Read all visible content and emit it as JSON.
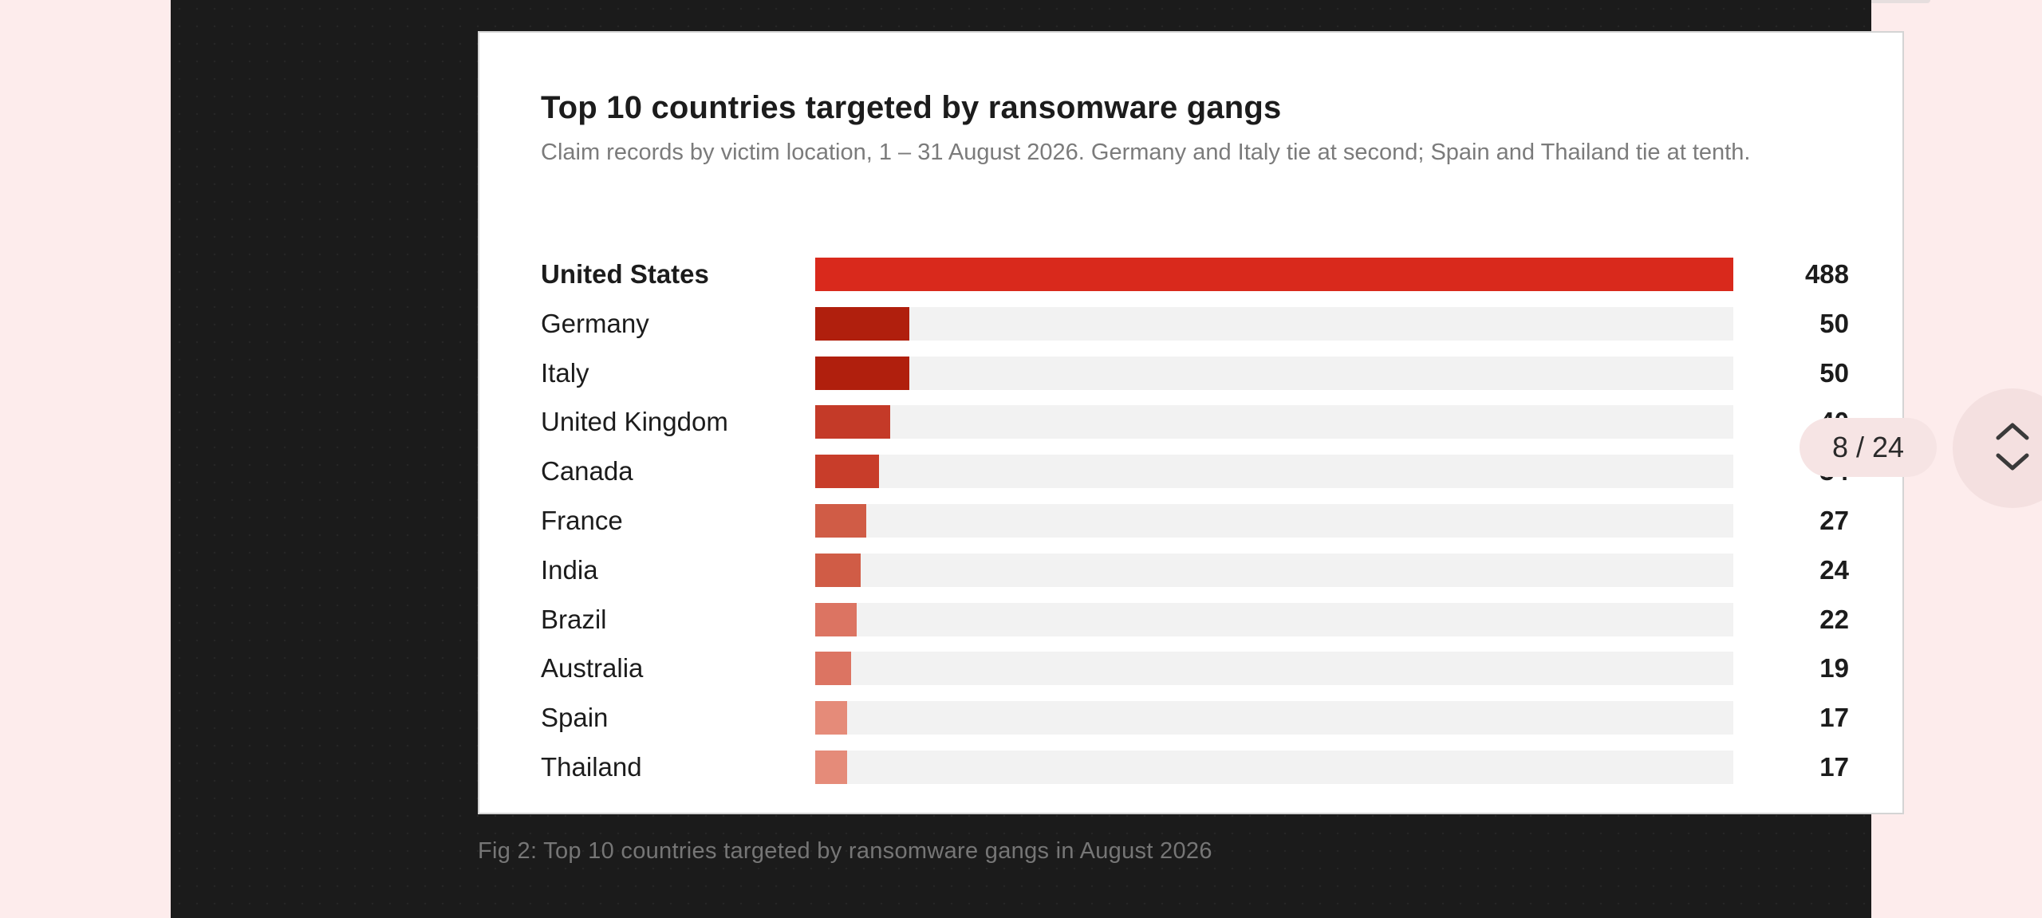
{
  "chart_data": {
    "type": "bar",
    "orientation": "horizontal",
    "title": "Top 10 countries targeted by ransomware gangs",
    "subtitle": "Claim records by victim location, 1 – 31 August 2026. Germany and Italy tie at second; Spain and Thailand tie at tenth.",
    "categories": [
      "United States",
      "Germany",
      "Italy",
      "United Kingdom",
      "Canada",
      "France",
      "India",
      "Brazil",
      "Australia",
      "Spain",
      "Thailand"
    ],
    "values": [
      488,
      50,
      50,
      40,
      34,
      27,
      24,
      22,
      19,
      17,
      17
    ],
    "value_labels": [
      "488",
      "50",
      "50",
      "40",
      "34",
      "27",
      "24",
      "22",
      "19",
      "17",
      "17"
    ],
    "bar_colors": [
      "#d9291c",
      "#b01f0d",
      "#b01f0d",
      "#c43a28",
      "#c83d2a",
      "#d05c46",
      "#d05c46",
      "#dc7462",
      "#dc7462",
      "#e58b79",
      "#e58b79"
    ],
    "track_color": "#f2f2f2",
    "xlim": [
      0,
      488
    ],
    "grid": false,
    "legend": false
  },
  "caption": "Fig 2: Top 10 countries targeted by ransomware gangs in August 2026",
  "pager": {
    "label": "8 / 24",
    "up_icon": "chevron-up-icon",
    "down_icon": "chevron-down-icon"
  }
}
